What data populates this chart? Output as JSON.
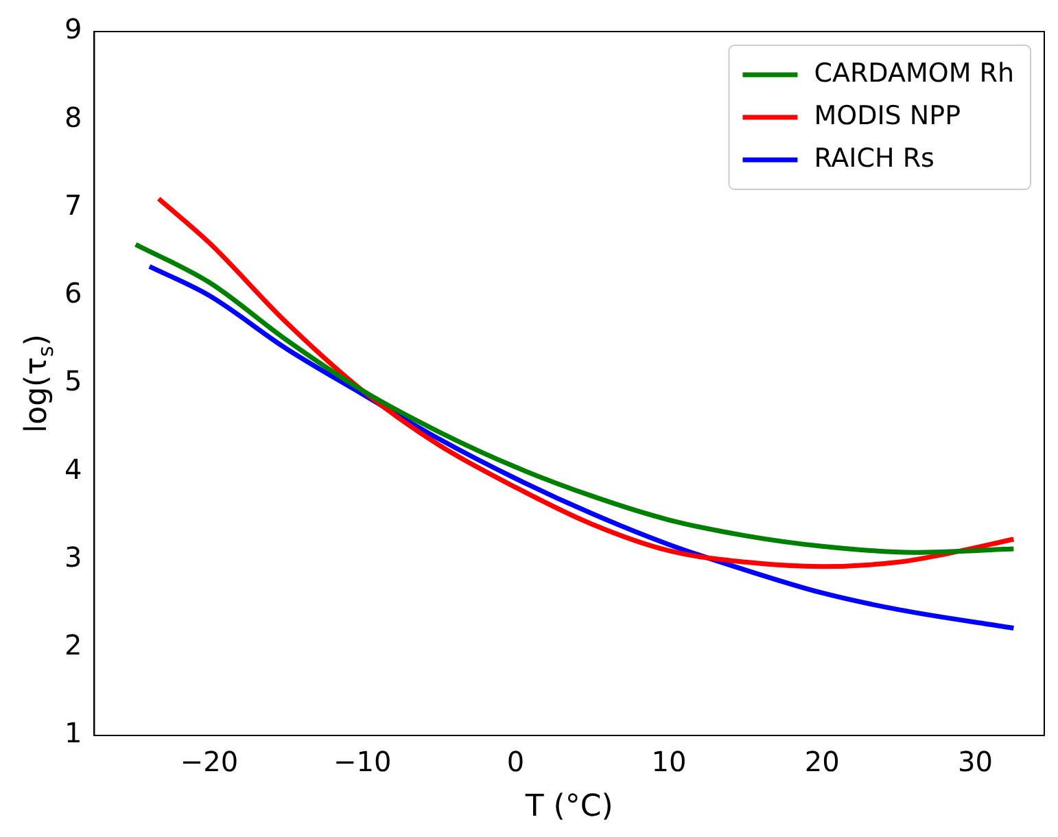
{
  "chart_data": {
    "type": "line",
    "xlabel": "T (°C)",
    "ylabel": "log(τ$_{s}$)",
    "xlim": [
      -27.5,
      34.5
    ],
    "xticks": [
      {
        "value": -20,
        "label": "−20"
      },
      {
        "value": -10,
        "label": "−10"
      },
      0,
      10,
      20,
      30
    ],
    "ylim": [
      1,
      9
    ],
    "yticks": [
      1,
      2,
      3,
      4,
      5,
      6,
      7,
      8,
      9
    ],
    "grid": false,
    "legend": "top right",
    "marker": "none",
    "line_style": "solid",
    "series": [
      {
        "name": "CARDAMOM Rh",
        "color": "#008000",
        "x": [
          -24.8,
          -20,
          -15,
          -10,
          -5,
          0,
          5,
          10,
          15,
          20,
          26,
          32.5
        ],
        "values": [
          6.58,
          6.15,
          5.5,
          4.92,
          4.45,
          4.05,
          3.72,
          3.45,
          3.27,
          3.15,
          3.08,
          3.12
        ]
      },
      {
        "name": "MODIS NPP",
        "color": "#ff0000",
        "x": [
          -23.3,
          -20,
          -15,
          -10,
          -5,
          0,
          5,
          10,
          15,
          20,
          25,
          28,
          32.5
        ],
        "values": [
          7.1,
          6.6,
          5.7,
          4.92,
          4.3,
          3.82,
          3.4,
          3.1,
          2.97,
          2.92,
          2.97,
          3.06,
          3.23
        ]
      },
      {
        "name": "RAICH Rs",
        "color": "#0000ff",
        "x": [
          -23.9,
          -20,
          -15,
          -10,
          -5,
          0,
          5,
          10,
          15,
          20,
          25,
          32.5
        ],
        "values": [
          6.33,
          6.0,
          5.4,
          4.88,
          4.37,
          3.92,
          3.52,
          3.17,
          2.88,
          2.62,
          2.43,
          2.22
        ]
      }
    ]
  }
}
